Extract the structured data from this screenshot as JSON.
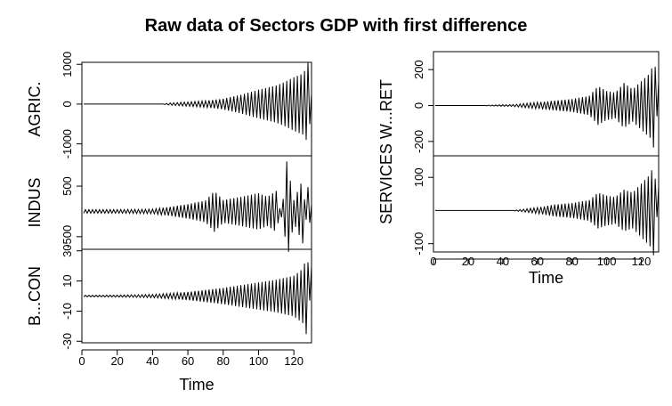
{
  "title": "Raw data of Sectors GDP with first difference",
  "chart_data": [
    {
      "type": "line",
      "xlabel": "Time",
      "xlim": [
        0,
        130
      ],
      "xticks": [
        0,
        20,
        40,
        60,
        80,
        100,
        120
      ],
      "panels": [
        {
          "ylabel": "AGRIC.",
          "ylim": [
            -1300,
            1050
          ],
          "yticks": [
            -1000,
            0,
            1000
          ],
          "anchors": [
            [
              1,
              0
            ],
            [
              45,
              0
            ],
            [
              50,
              30
            ],
            [
              60,
              60
            ],
            [
              70,
              90
            ],
            [
              80,
              150
            ],
            [
              90,
              260
            ],
            [
              100,
              400
            ],
            [
              110,
              520
            ],
            [
              115,
              620
            ],
            [
              120,
              750
            ],
            [
              125,
              850
            ],
            [
              127,
              1000
            ],
            [
              128,
              -1300
            ],
            [
              130,
              300
            ]
          ]
        },
        {
          "ylabel": "INDUS",
          "ylim": [
            -750,
            1100
          ],
          "yticks": [
            -500,
            500
          ],
          "anchors": [
            [
              1,
              40
            ],
            [
              20,
              40
            ],
            [
              40,
              50
            ],
            [
              50,
              100
            ],
            [
              60,
              160
            ],
            [
              70,
              240
            ],
            [
              75,
              450
            ],
            [
              80,
              250
            ],
            [
              90,
              320
            ],
            [
              100,
              400
            ],
            [
              105,
              320
            ],
            [
              110,
              450
            ],
            [
              115,
              -500
            ],
            [
              116,
              1100
            ],
            [
              120,
              250
            ],
            [
              125,
              700
            ],
            [
              128,
              -600
            ],
            [
              130,
              150
            ]
          ]
        },
        {
          "ylabel": "B...CON",
          "ylim": [
            -31,
            31
          ],
          "yticks": [
            -30,
            -10,
            10,
            30
          ],
          "anchors": [
            [
              1,
              0.5
            ],
            [
              20,
              0.7
            ],
            [
              40,
              1.2
            ],
            [
              50,
              2
            ],
            [
              60,
              3
            ],
            [
              70,
              4.5
            ],
            [
              80,
              6
            ],
            [
              90,
              8
            ],
            [
              100,
              10
            ],
            [
              110,
              12
            ],
            [
              120,
              15
            ],
            [
              125,
              20
            ],
            [
              127,
              28
            ],
            [
              128,
              -28
            ],
            [
              130,
              22
            ]
          ]
        }
      ]
    },
    {
      "type": "line",
      "xlabel": "Time",
      "xlim": [
        0,
        130
      ],
      "xticks": [
        0,
        20,
        40,
        60,
        80,
        100,
        120
      ],
      "ylabel": "SERVICES W...RET",
      "panels": [
        {
          "ylim": [
            -280,
            300
          ],
          "yticks": [
            -200,
            0,
            200
          ],
          "anchors": [
            [
              1,
              0
            ],
            [
              30,
              0
            ],
            [
              32,
              3
            ],
            [
              45,
              5
            ],
            [
              50,
              10
            ],
            [
              60,
              20
            ],
            [
              70,
              30
            ],
            [
              80,
              40
            ],
            [
              90,
              60
            ],
            [
              95,
              120
            ],
            [
              100,
              90
            ],
            [
              105,
              80
            ],
            [
              110,
              140
            ],
            [
              115,
              100
            ],
            [
              120,
              150
            ],
            [
              125,
              200
            ],
            [
              127,
              260
            ],
            [
              128,
              -270
            ],
            [
              130,
              150
            ]
          ]
        },
        {
          "ylim": [
            -125,
            165
          ],
          "yticks": [
            -100,
            100
          ],
          "anchors": [
            [
              1,
              0
            ],
            [
              45,
              0
            ],
            [
              50,
              3
            ],
            [
              60,
              10
            ],
            [
              70,
              20
            ],
            [
              80,
              25
            ],
            [
              90,
              35
            ],
            [
              95,
              60
            ],
            [
              100,
              50
            ],
            [
              105,
              45
            ],
            [
              110,
              70
            ],
            [
              115,
              60
            ],
            [
              120,
              90
            ],
            [
              125,
              120
            ],
            [
              127,
              150
            ],
            [
              128,
              -120
            ],
            [
              130,
              80
            ]
          ]
        }
      ]
    }
  ]
}
